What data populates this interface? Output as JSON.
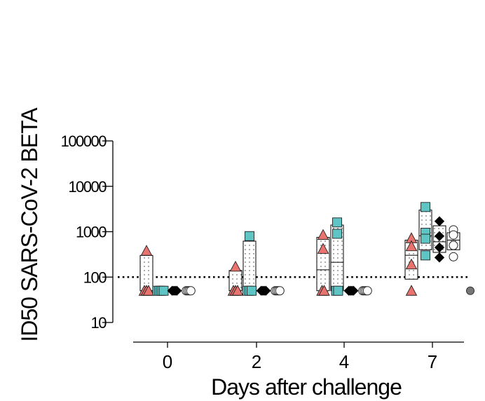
{
  "chart_data": {
    "type": "scatter",
    "ylabel": "ID50 SARS-CoV-2 BETA",
    "xlabel": "Days after challenge",
    "yscale": "log",
    "ylim": [
      10,
      100000
    ],
    "yticks": [
      "10",
      "100",
      "1000",
      "10000",
      "100000"
    ],
    "categories": [
      "0",
      "2",
      "4",
      "7"
    ],
    "threshold": 100,
    "grid": false,
    "colors": {
      "triangle": "#e8736f",
      "square": "#5ec4c4",
      "diamond": "#000000",
      "circle": "#ffffff",
      "control": "#777777"
    },
    "groups": [
      {
        "marker": "triangle",
        "color": "#e8736f",
        "boxes": [
          [
            50,
            300
          ],
          [
            50,
            140
          ],
          [
            50,
            750
          ],
          [
            90,
            650
          ]
        ],
        "values": [
          [
            380,
            50,
            50,
            50
          ],
          [
            170,
            50,
            50,
            50
          ],
          [
            850,
            420,
            50,
            50
          ],
          [
            720,
            480,
            190,
            50
          ]
        ]
      },
      {
        "marker": "square",
        "color": "#5ec4c4",
        "boxes": [
          [
            50,
            50
          ],
          [
            50,
            620
          ],
          [
            50,
            1400
          ],
          [
            400,
            3000
          ]
        ],
        "values": [
          [
            50,
            50,
            50,
            50
          ],
          [
            800,
            50,
            50,
            50
          ],
          [
            1600,
            900,
            50,
            50
          ],
          [
            3500,
            950,
            700,
            300
          ]
        ]
      },
      {
        "marker": "diamond",
        "color": "#000000",
        "boxes": [
          [
            50,
            50
          ],
          [
            50,
            50
          ],
          [
            50,
            50
          ],
          [
            350,
            1350
          ]
        ],
        "values": [
          [
            50,
            50,
            50,
            50
          ],
          [
            50,
            50,
            50,
            50
          ],
          [
            50,
            50,
            50,
            50
          ],
          [
            1700,
            800,
            450,
            270
          ]
        ]
      },
      {
        "marker": "circle",
        "color": "#ffffff",
        "boxes": [
          [
            50,
            50
          ],
          [
            50,
            50
          ],
          [
            50,
            50
          ],
          [
            400,
            950
          ]
        ],
        "values": [
          [
            50,
            50,
            50,
            50
          ],
          [
            50,
            50,
            50,
            50
          ],
          [
            50,
            50,
            50,
            50
          ],
          [
            1100,
            850,
            500,
            280
          ]
        ]
      }
    ],
    "control": {
      "marker": "circle",
      "color": "#777777",
      "category": "7",
      "value": 50
    }
  }
}
